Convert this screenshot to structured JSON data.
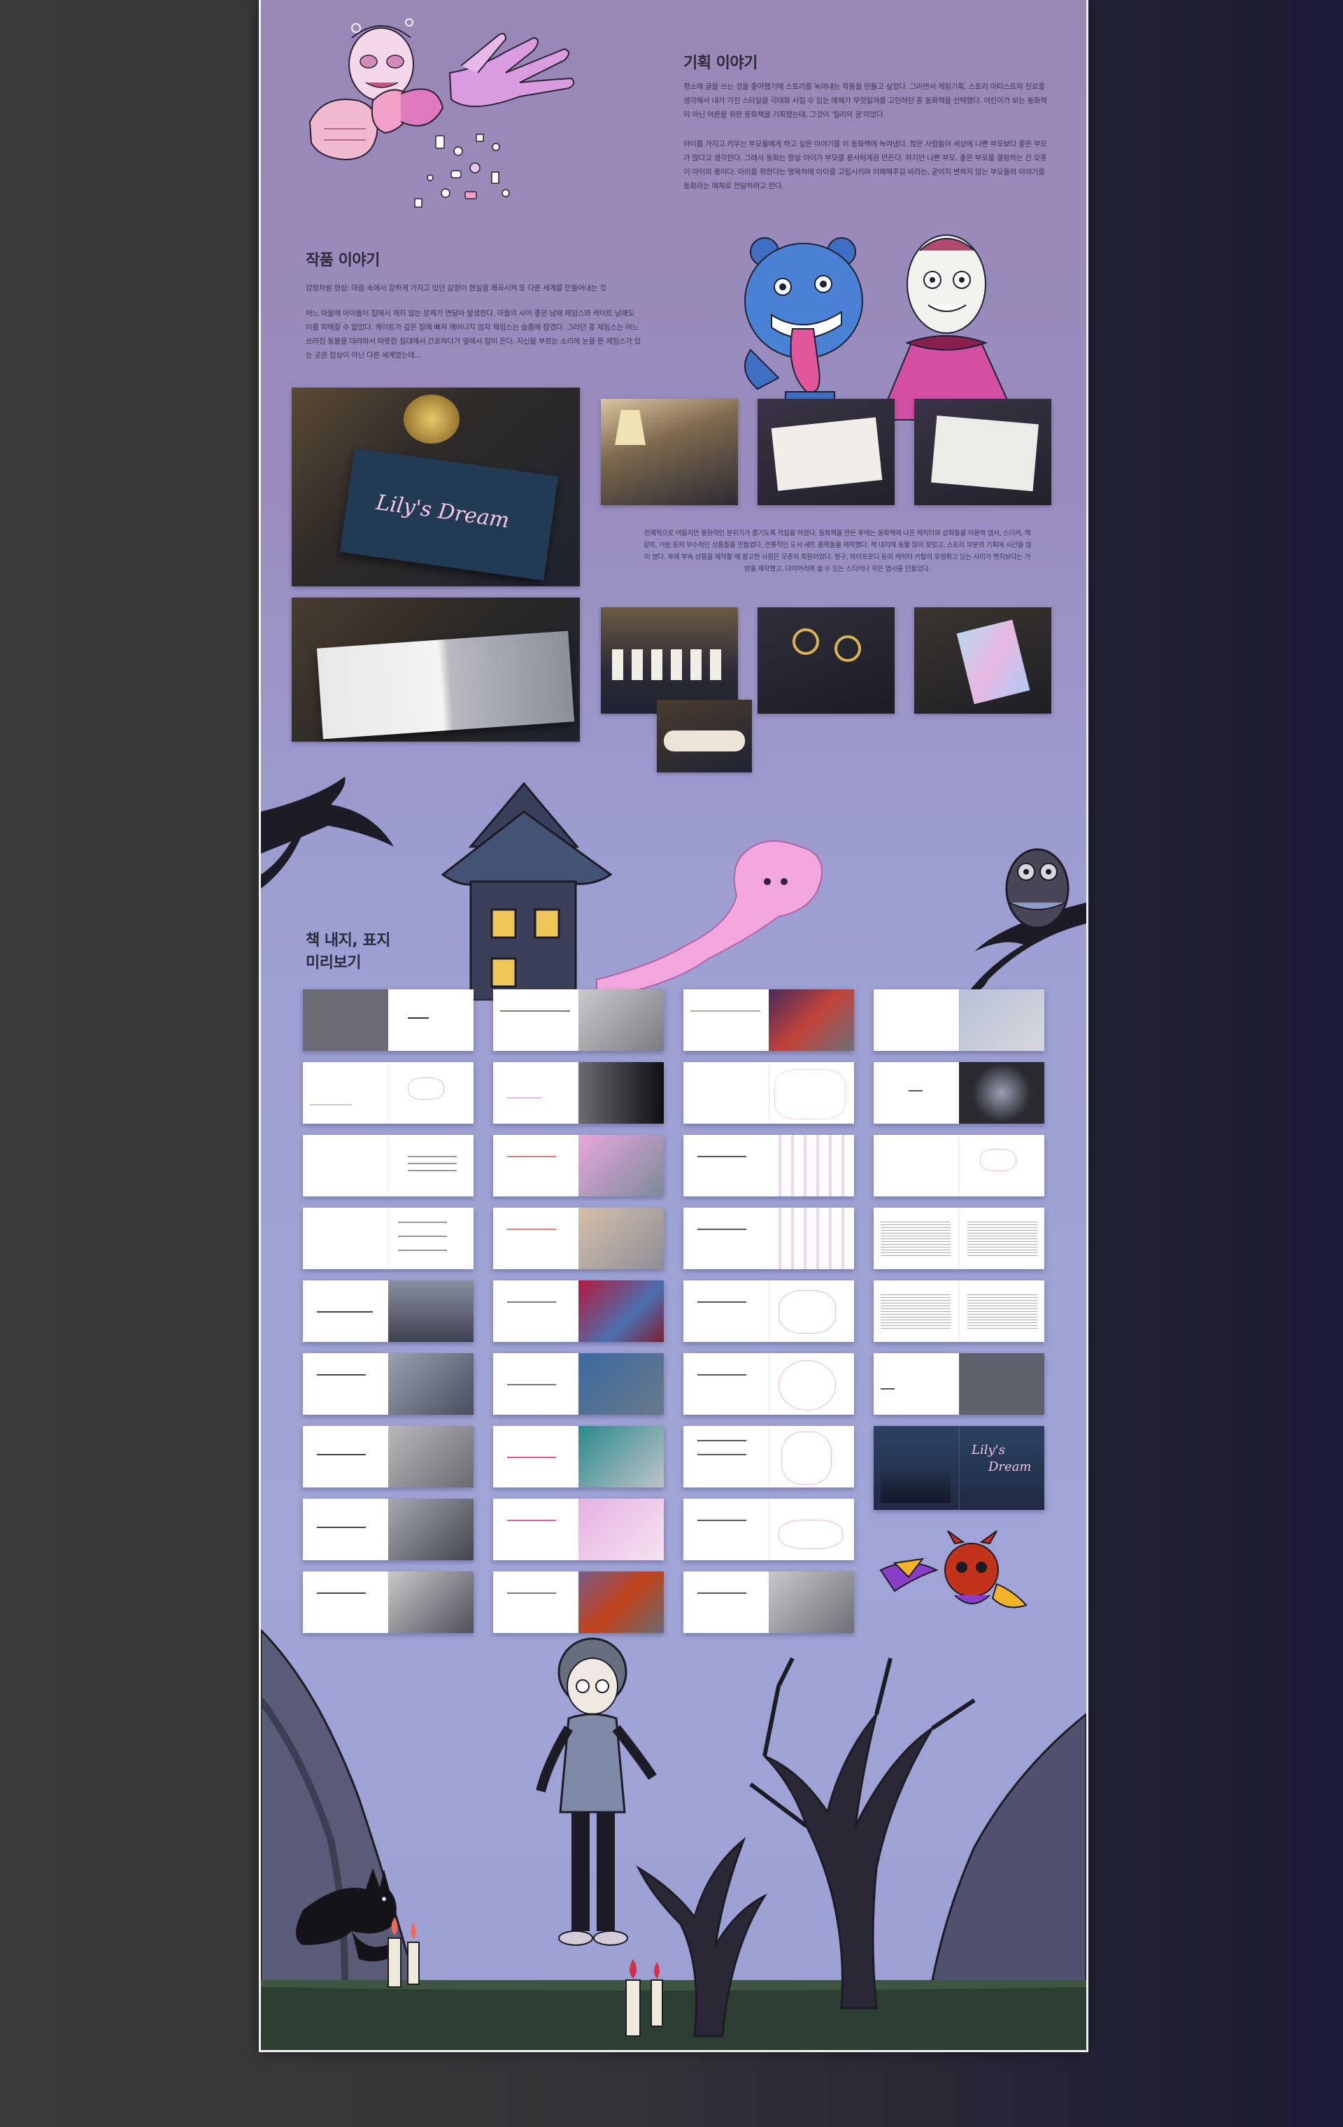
{
  "planning": {
    "title": "기획 이야기",
    "p1": "평소에 글을 쓰는 것을 좋아했기에 스토리를 녹여내는 작품을 만들고 싶었다. 그러면서 게임기획, 스토리 아티스트의 진로를 생각해서 내가 가진 스타일을 극대화 시킬 수 있는 매체가 무엇일까를 고민하던 중 동화책을 선택했다. 어린이가 보는 동화책이 아닌 어른을 위한 동화책을 기획했는데, 그것이 '릴리의 꿈'이었다.",
    "p2": "아이를 가지고 키우는 부모들에게 하고 싶은 이야기를 이 동화책에 녹여냈다. 많은 사람들이 세상에 나쁜 부모보다 좋은 부모가 많다고 생각한다. 그래서 동화는 항상 아이가 부모를 용서하게끔 만든다. 하지만 나쁜 부모, 좋은 부모를 결정하는 건 오롯이 아이의 몫이다. 아이를 위한다는 명목하에 아이를 고립시키며 이해해주길 바라는, 굳이지 변하지 않는 부모들의 이야기를 동화라는 매체로 전달하려고 한다."
  },
  "work": {
    "title": "작품 이야기",
    "p1": "감정차원 현상: 마음 속에서 강하게 가지고 있던 감정이 현실을 왜곡시켜 또 다른 세계를 만들어내는 것",
    "p2": "어느 마을에 아이들이 집에서 깨지 않는 문제가 연달아 발생한다. 마을의 사이 좋은 남매 제임스와 케이트 남매도 이를 피해갈 수 없었다. 케이트가 깊은 잠에 빠져 깨어나지 않자 제임스는 슬픔에 잠겼다. 그러던 중 제임스는 어느 쓰러진 동물을 데려와서 따뜻한 침대에서 간호하다가 옆에서 잠이 든다. 자신을 부르는 소리에 눈을 뜬 제임스가 있는 곳은 참상이 아닌 다른 세계였는데..."
  },
  "product": {
    "text": "전체적으로 어둡지만 몽환적인 분위기가 즐기도록 작업을 하였다. 동화책을 만든 후에는 동화책에 나온 캐릭터와 삽화들을 이용해 엽서, 스티커, 책갈피, 거람 등의 부수적인 상품들을 만들었다. 전통적인 도서 세트 품목들을 제작했다. 책 내지에 동물 많이 찾았고, 스토리 부분의 기획에 시간을 많이 썼다. 후에 부속 상품을 제작할 때 참고한 사람은 모종의 회원이었다. 향구, 파이프로디 등의 캐릭터 카탈의 유형화고 있는 사이가 헷치보다는 가방을 제작했고, 다이어리에 쓸 수 있는 스티커나 작은 엽서를 만들었다."
  },
  "preview": {
    "title_line1": "책 내지, 표지",
    "title_line2": "미리보기"
  },
  "book": {
    "title": "Lily's Dream",
    "cover_title_line1": "Lily's",
    "cover_title_line2": "Dream"
  },
  "colors": {
    "accent_pink": "#e07ac0",
    "board_purple": "#9a8cc0",
    "dark_navy": "#1f2a44"
  }
}
